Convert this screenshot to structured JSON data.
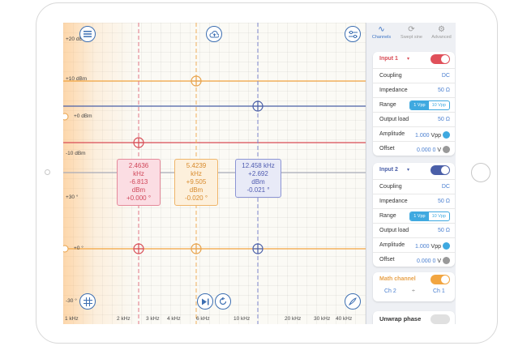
{
  "plot": {
    "y_ticks": [
      "+20 dBm",
      "+10 dBm",
      "+0 dBm",
      "-10 dBm",
      "+30 °",
      "+0 °",
      "-30 °"
    ],
    "x_ticks": [
      "1 kHz",
      "2 kHz",
      "3 kHz",
      "4 kHz",
      "6 kHz",
      "10 kHz",
      "20 kHz",
      "30 kHz",
      "40 kHz"
    ],
    "markers": [
      {
        "freq": "2.4636 kHz",
        "level": "-6.813 dBm",
        "phase": "+0.000 °",
        "color": "#e0607a"
      },
      {
        "freq": "5.4239 kHz",
        "level": "+9.505 dBm",
        "phase": "-0.020 °",
        "color": "#e8a24a"
      },
      {
        "freq": "12.458 kHz",
        "level": "+2.692 dBm",
        "phase": "-0.021 °",
        "color": "#6a76c6"
      }
    ],
    "colors": {
      "orange": "#f2a540",
      "red": "#d84b55",
      "blue": "#4a5fa8",
      "gray": "#a7aab8"
    }
  },
  "toolbar": {
    "menu_icon": "hamburger-menu-icon",
    "cloud_icon": "cloud-upload-icon",
    "settings_icon": "sliders-icon",
    "grid_icon": "grid-icon",
    "play_icon": "play-step-icon",
    "loop_icon": "refresh-icon",
    "draw_icon": "draw-icon"
  },
  "sidebar": {
    "tabs": [
      {
        "label": "Channels",
        "icon": "wave-icon",
        "active": true
      },
      {
        "label": "Swept sine",
        "icon": "sweep-icon",
        "active": false
      },
      {
        "label": "Advanced",
        "icon": "gear-icon",
        "active": false
      }
    ],
    "input1": {
      "title": "Input 1",
      "coupling_label": "Coupling",
      "coupling_value": "DC",
      "impedance_label": "Impedance",
      "impedance_value": "50 Ω",
      "range_label": "Range",
      "range_options": [
        "1 Vpp",
        "10 Vpp"
      ],
      "range_selected": "1 Vpp",
      "output_load_label": "Output load",
      "output_load_value": "50 Ω",
      "amplitude_label": "Amplitude",
      "amplitude_value": "1.000",
      "amplitude_unit": "Vpp",
      "offset_label": "Offset",
      "offset_value": "0.000 0",
      "offset_unit": "V"
    },
    "input2": {
      "title": "Input 2",
      "coupling_label": "Coupling",
      "coupling_value": "DC",
      "impedance_label": "Impedance",
      "impedance_value": "50 Ω",
      "range_label": "Range",
      "range_options": [
        "1 Vpp",
        "10 Vpp"
      ],
      "range_selected": "1 Vpp",
      "output_load_label": "Output load",
      "output_load_value": "50 Ω",
      "amplitude_label": "Amplitude",
      "amplitude_value": "1.000",
      "amplitude_unit": "Vpp",
      "offset_label": "Offset",
      "offset_value": "0.000 0",
      "offset_unit": "V"
    },
    "math": {
      "title": "Math channel",
      "left": "Ch 2",
      "op": "÷",
      "right": "Ch 1"
    },
    "unwrap": {
      "title": "Unwrap phase"
    }
  }
}
